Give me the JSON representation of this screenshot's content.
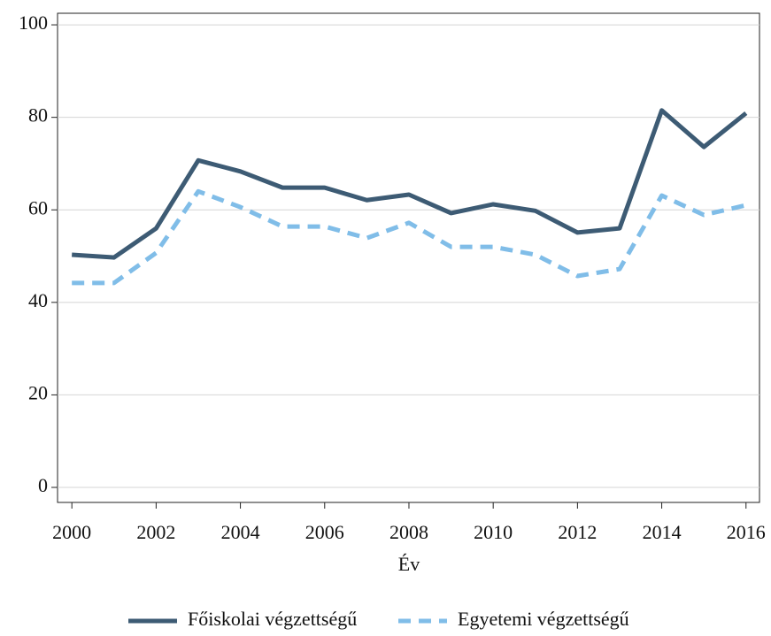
{
  "chart_data": {
    "type": "line",
    "x_label": "Év",
    "x": [
      2000,
      2001,
      2002,
      2003,
      2004,
      2005,
      2006,
      2007,
      2008,
      2009,
      2010,
      2011,
      2012,
      2013,
      2014,
      2015,
      2016
    ],
    "series": [
      {
        "name": "Főiskolai végzettségű",
        "color": "#3d5b74",
        "dashed": false,
        "values": [
          50.3,
          49.7,
          56.0,
          70.7,
          68.3,
          64.8,
          64.8,
          62.1,
          63.3,
          59.3,
          61.2,
          59.8,
          55.1,
          56.0,
          81.5,
          73.6,
          80.9
        ]
      },
      {
        "name": "Egyetemi végzettségű",
        "color": "#80bde8",
        "dashed": true,
        "values": [
          44.2,
          44.2,
          50.7,
          64.0,
          60.6,
          56.4,
          56.4,
          53.9,
          57.2,
          52.0,
          52.0,
          50.3,
          45.7,
          47.2,
          63.1,
          58.9,
          61.0
        ]
      }
    ],
    "xlim": [
      1999.66,
      2016.32
    ],
    "ylim": [
      -3.25,
      102.5
    ],
    "xticks": [
      2000,
      2002,
      2004,
      2006,
      2008,
      2010,
      2012,
      2014,
      2016
    ],
    "yticks": [
      0,
      20,
      40,
      60,
      80,
      100
    ],
    "grid": true,
    "legend": "bottom"
  }
}
